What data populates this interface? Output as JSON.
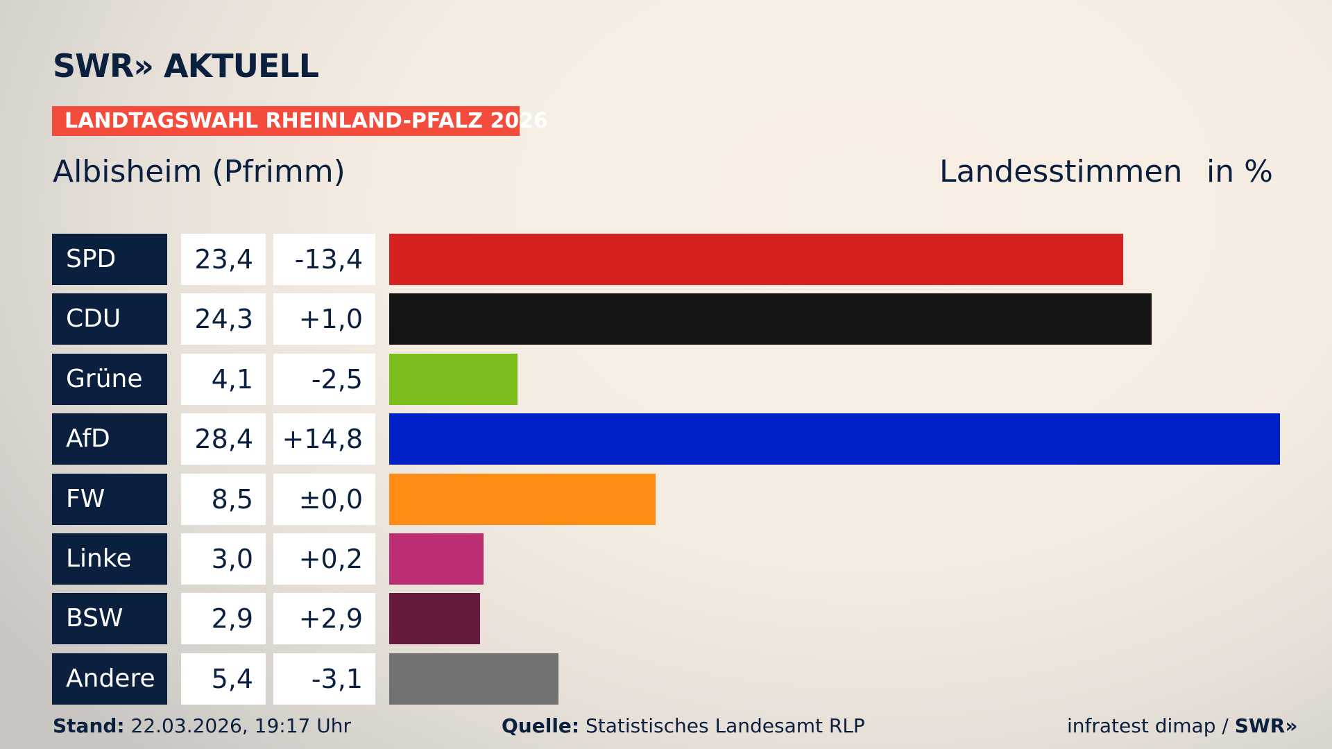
{
  "header": {
    "logo": "SWR» AKTUELL",
    "banner": "LANDTAGSWAHL RHEINLAND-PFALZ 2026",
    "location": "Albisheim (Pfrimm)",
    "vote_type": "Landesstimmen",
    "unit": "in %"
  },
  "chart_data": {
    "type": "bar",
    "orientation": "horizontal",
    "xlim": [
      0,
      28.4
    ],
    "categories": [
      "SPD",
      "CDU",
      "Grüne",
      "AfD",
      "FW",
      "Linke",
      "BSW",
      "Andere"
    ],
    "values": [
      23.4,
      24.3,
      4.1,
      28.4,
      8.5,
      3.0,
      2.9,
      5.4
    ],
    "value_labels": [
      "23,4",
      "24,3",
      "4,1",
      "28,4",
      "8,5",
      "3,0",
      "2,9",
      "5,4"
    ],
    "diff_labels": [
      "-13,4",
      "+1,0",
      "-2,5",
      "+14,8",
      "±0,0",
      "+0,2",
      "+2,9",
      "-3,1"
    ],
    "colors": [
      "#d72020",
      "#141414",
      "#7bbd1d",
      "#0021c8",
      "#ff8c17",
      "#bd2f74",
      "#661a3e",
      "#727272"
    ]
  },
  "footer": {
    "stand_label": "Stand:",
    "stand_value": "22.03.2026, 19:17 Uhr",
    "source_label": "Quelle:",
    "source_value": "Statistisches Landesamt RLP",
    "credit": "infratest dimap / ",
    "credit_logo": "SWR»"
  }
}
